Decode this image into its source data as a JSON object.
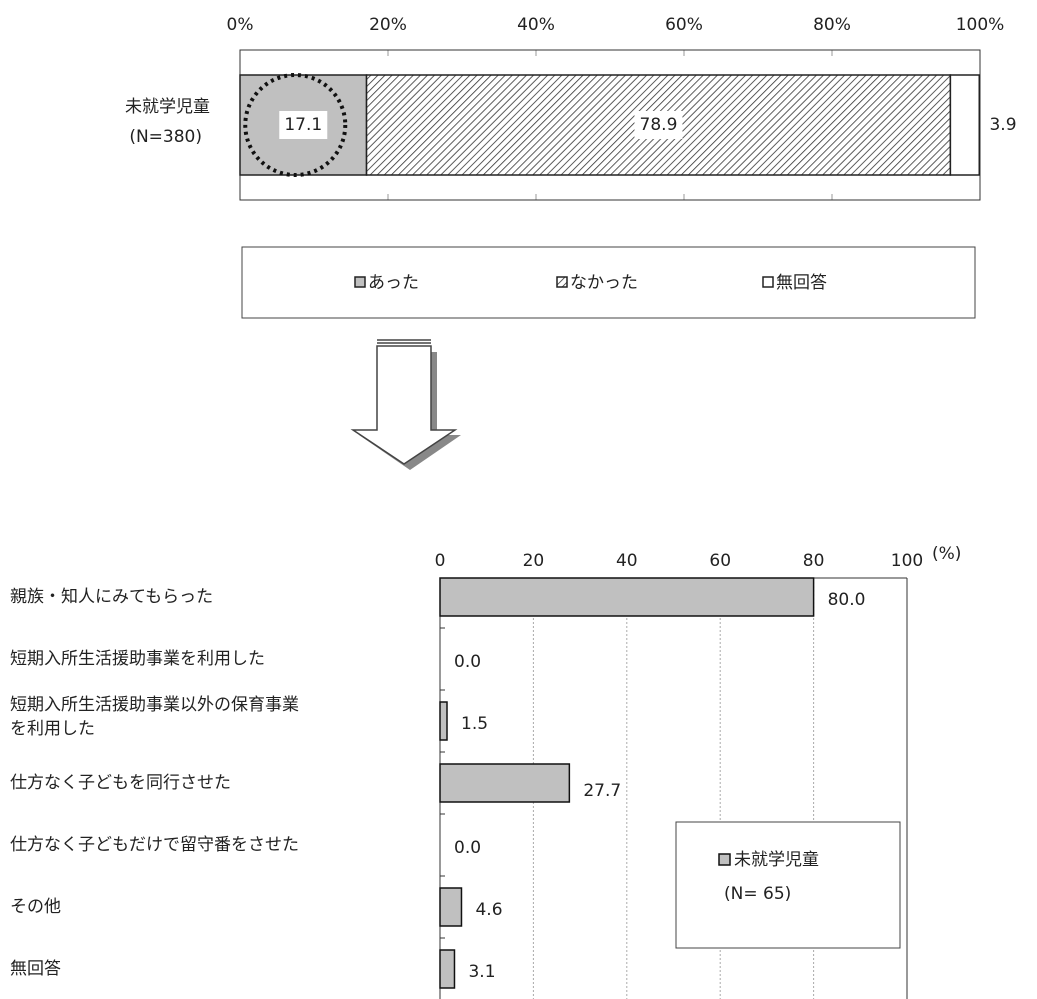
{
  "chart_data": [
    {
      "type": "stacked-bar",
      "categories": [
        "未就学児童"
      ],
      "category_notes": [
        "(N=380)"
      ],
      "series": [
        {
          "name": "あった",
          "color": "#c0c0c0",
          "values": [
            17.1
          ]
        },
        {
          "name": "なかった",
          "color": "hatch",
          "values": [
            78.9
          ]
        },
        {
          "name": "無回答",
          "color": "#ffffff",
          "values": [
            3.9
          ]
        }
      ],
      "xlim": [
        0,
        100
      ],
      "xticks": [
        {
          "value": 0,
          "label": "0%"
        },
        {
          "value": 20,
          "label": "20%"
        },
        {
          "value": 40,
          "label": "40%"
        },
        {
          "value": 60,
          "label": "60%"
        },
        {
          "value": 80,
          "label": "80%"
        },
        {
          "value": 100,
          "label": "100%"
        }
      ],
      "legend": "bottom"
    },
    {
      "type": "bar",
      "categories": [
        "親族・知人にみてもらった",
        "短期入所生活援助事業を利用した",
        "短期入所生活援助事業以外の保育事業を利用した",
        "仕方なく子どもを同行させた",
        "仕方なく子どもだけで留守番をさせた",
        "その他",
        "無回答"
      ],
      "series": [
        {
          "name": "未就学児童",
          "color": "#c0c0c0",
          "values": [
            80.0,
            0.0,
            1.5,
            27.7,
            0.0,
            4.6,
            3.1
          ],
          "value_labels": [
            "80.0",
            "0.0",
            "1.5",
            "27.7",
            "0.0",
            "4.6",
            "3.1"
          ]
        }
      ],
      "legend_note": "(N= 65)",
      "x_unit": "(%)",
      "xlim": [
        0,
        100
      ],
      "xticks": [
        0,
        20,
        40,
        60,
        80,
        100
      ],
      "grid": true,
      "legend": "lower right"
    }
  ]
}
